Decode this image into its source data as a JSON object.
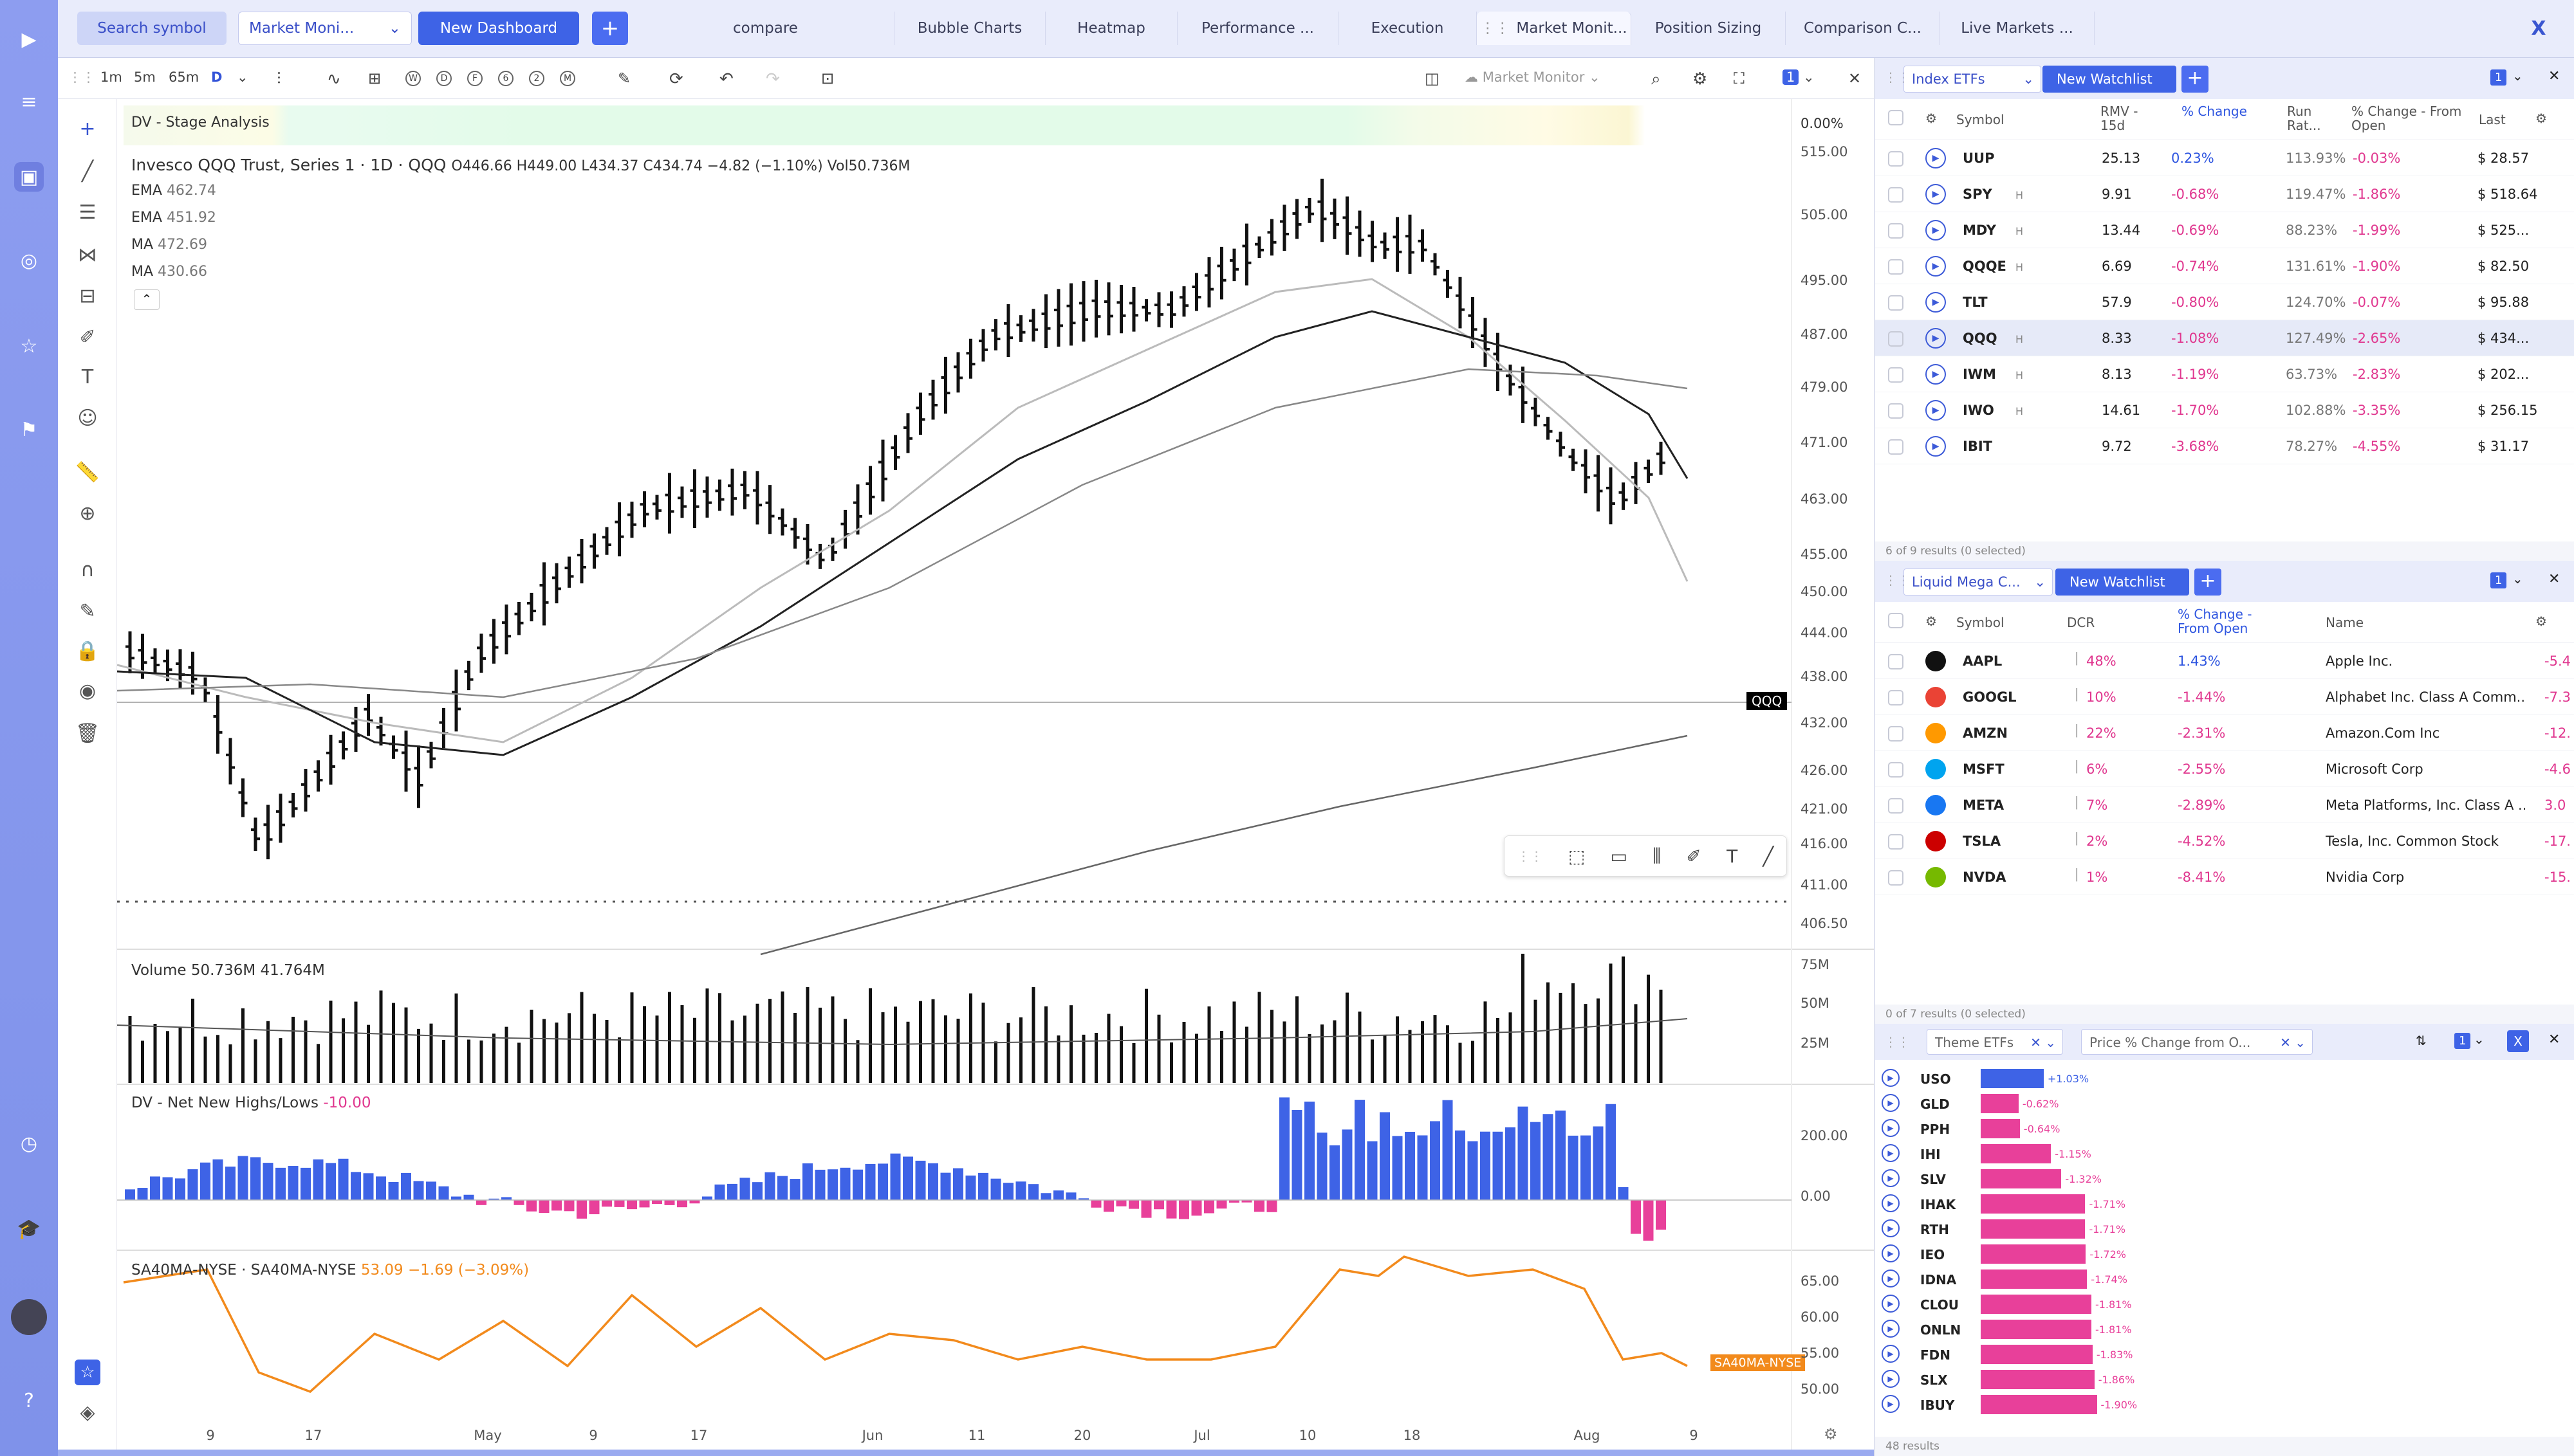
{
  "topbar": {
    "search_label": "Search symbol",
    "dashboard_select": "Market Moni...",
    "new_dashboard": "New Dashboard",
    "plus": "+",
    "tabs": [
      "compare",
      "Bubble Charts",
      "Heatmap",
      "Performance ...",
      "Execution",
      "Market Monit...",
      "Position Sizing",
      "Comparison C...",
      "Live Markets ..."
    ],
    "close": "X"
  },
  "chart_toolbar": {
    "intervals": [
      "1m",
      "5m",
      "65m",
      "D"
    ],
    "periods": [
      "W",
      "D",
      "F",
      "6",
      "2",
      "M"
    ],
    "layout_name": "Market Monitor",
    "count": "1"
  },
  "chart": {
    "stage_label": "DV - Stage Analysis",
    "stage_value": "0.00%",
    "title": "Invesco QQQ Trust, Series 1 · 1D · QQQ",
    "ohlc": "O446.66  H449.00  L434.37  C434.74  −4.82 (−1.10%)  Vol50.736M",
    "ma_lines": [
      {
        "label": "EMA",
        "value": "462.74"
      },
      {
        "label": "EMA",
        "value": "451.92"
      },
      {
        "label": "MA",
        "value": "472.69"
      },
      {
        "label": "MA",
        "value": "430.66"
      }
    ],
    "price_ticks": [
      "515.00",
      "505.00",
      "495.00",
      "487.00",
      "479.00",
      "471.00",
      "463.00",
      "455.00",
      "450.00",
      "444.00",
      "438.00",
      "432.00",
      "426.00",
      "421.00",
      "416.00",
      "411.00",
      "406.50"
    ],
    "symbol_tag": "QQQ",
    "volume_label": "Volume",
    "volume_values": "50.736M  41.764M",
    "volume_ticks": [
      "75M",
      "50M",
      "25M"
    ],
    "nnh_label": "DV - Net New Highs/Lows",
    "nnh_value": "-10.00",
    "nnh_ticks": [
      "200.00",
      "0.00"
    ],
    "sa_label": "SA40MA-NYSE · SA40MA-NYSE",
    "sa_value": "53.09  −1.69 (−3.09%)",
    "sa_ticks": [
      "65.00",
      "60.00",
      "55.00",
      "50.00"
    ],
    "sa_tag": "SA40MA-NYSE",
    "date_ticks": [
      "9",
      "17",
      "May",
      "9",
      "17",
      "Jun",
      "11",
      "20",
      "Jul",
      "10",
      "18",
      "Aug",
      "9"
    ]
  },
  "watchlist1": {
    "select": "Index ETFs",
    "new_button": "New Watchlist",
    "count": "1",
    "columns": [
      "Symbol",
      "RMV - 15d",
      "% Change",
      "Run Rat...",
      "% Change - From Open",
      "Last"
    ],
    "rows": [
      {
        "sym": "UUP",
        "h": "",
        "rmv": "25.13",
        "chg": "0.23%",
        "run": "113.93%",
        "open": "-0.03%",
        "last": "$ 28.57",
        "hl": false
      },
      {
        "sym": "SPY",
        "h": "H",
        "rmv": "9.91",
        "chg": "-0.68%",
        "run": "119.47%",
        "open": "-1.86%",
        "last": "$ 518.64",
        "hl": false
      },
      {
        "sym": "MDY",
        "h": "H",
        "rmv": "13.44",
        "chg": "-0.69%",
        "run": "88.23%",
        "open": "-1.99%",
        "last": "$ 525...",
        "hl": false
      },
      {
        "sym": "QQQE",
        "h": "H",
        "rmv": "6.69",
        "chg": "-0.74%",
        "run": "131.61%",
        "open": "-1.90%",
        "last": "$ 82.50",
        "hl": false
      },
      {
        "sym": "TLT",
        "h": "",
        "rmv": "57.9",
        "chg": "-0.80%",
        "run": "124.70%",
        "open": "-0.07%",
        "last": "$ 95.88",
        "hl": false
      },
      {
        "sym": "QQQ",
        "h": "H",
        "rmv": "8.33",
        "chg": "-1.08%",
        "run": "127.49%",
        "open": "-2.65%",
        "last": "$ 434...",
        "hl": true
      },
      {
        "sym": "IWM",
        "h": "H",
        "rmv": "8.13",
        "chg": "-1.19%",
        "run": "63.73%",
        "open": "-2.83%",
        "last": "$ 202...",
        "hl": false
      },
      {
        "sym": "IWO",
        "h": "H",
        "rmv": "14.61",
        "chg": "-1.70%",
        "run": "102.88%",
        "open": "-3.35%",
        "last": "$ 256.15",
        "hl": false
      },
      {
        "sym": "IBIT",
        "h": "",
        "rmv": "9.72",
        "chg": "-3.68%",
        "run": "78.27%",
        "open": "-4.55%",
        "last": "$ 31.17",
        "hl": false
      }
    ],
    "footer": "6 of 9 results (0 selected)"
  },
  "watchlist2": {
    "select": "Liquid Mega C...",
    "new_button": "New Watchlist",
    "count": "1",
    "columns": [
      "Symbol",
      "DCR",
      "% Change - From Open",
      "Name"
    ],
    "rows": [
      {
        "sym": "AAPL",
        "dcr": "48%",
        "chg": "1.43%",
        "name": "Apple Inc.",
        "extra": "-5.4",
        "color": "#111"
      },
      {
        "sym": "GOOGL",
        "dcr": "10%",
        "chg": "-1.44%",
        "name": "Alphabet Inc. Class A Comm...",
        "extra": "-7.3",
        "color": "#ea4335"
      },
      {
        "sym": "AMZN",
        "dcr": "22%",
        "chg": "-2.31%",
        "name": "Amazon.Com Inc",
        "extra": "-12.",
        "color": "#ff9900"
      },
      {
        "sym": "MSFT",
        "dcr": "6%",
        "chg": "-2.55%",
        "name": "Microsoft Corp",
        "extra": "-4.6",
        "color": "#00a4ef"
      },
      {
        "sym": "META",
        "dcr": "7%",
        "chg": "-2.89%",
        "name": "Meta Platforms, Inc. Class A ...",
        "extra": "3.0",
        "color": "#1877f2"
      },
      {
        "sym": "TSLA",
        "dcr": "2%",
        "chg": "-4.52%",
        "name": "Tesla, Inc. Common Stock",
        "extra": "-17.",
        "color": "#cc0000"
      },
      {
        "sym": "NVDA",
        "dcr": "1%",
        "chg": "-8.41%",
        "name": "Nvidia Corp",
        "extra": "-15.",
        "color": "#76b900"
      }
    ],
    "footer": "0 of 7 results (0 selected)"
  },
  "theme": {
    "select1": "Theme ETFs",
    "select2": "Price % Change from O...",
    "count": "1",
    "rows": [
      {
        "sym": "USO",
        "val": "+1.03%",
        "pct": 1.03
      },
      {
        "sym": "GLD",
        "val": "-0.62%",
        "pct": -0.62
      },
      {
        "sym": "PPH",
        "val": "-0.64%",
        "pct": -0.64
      },
      {
        "sym": "IHI",
        "val": "-1.15%",
        "pct": -1.15
      },
      {
        "sym": "SLV",
        "val": "-1.32%",
        "pct": -1.32
      },
      {
        "sym": "IHAK",
        "val": "-1.71%",
        "pct": -1.71
      },
      {
        "sym": "RTH",
        "val": "-1.71%",
        "pct": -1.71
      },
      {
        "sym": "IEO",
        "val": "-1.72%",
        "pct": -1.72
      },
      {
        "sym": "IDNA",
        "val": "-1.74%",
        "pct": -1.74
      },
      {
        "sym": "CLOU",
        "val": "-1.81%",
        "pct": -1.81
      },
      {
        "sym": "ONLN",
        "val": "-1.81%",
        "pct": -1.81
      },
      {
        "sym": "FDN",
        "val": "-1.83%",
        "pct": -1.83
      },
      {
        "sym": "SLX",
        "val": "-1.86%",
        "pct": -1.86
      },
      {
        "sym": "IBUY",
        "val": "-1.90%",
        "pct": -1.9
      }
    ],
    "footer": "48 results"
  }
}
